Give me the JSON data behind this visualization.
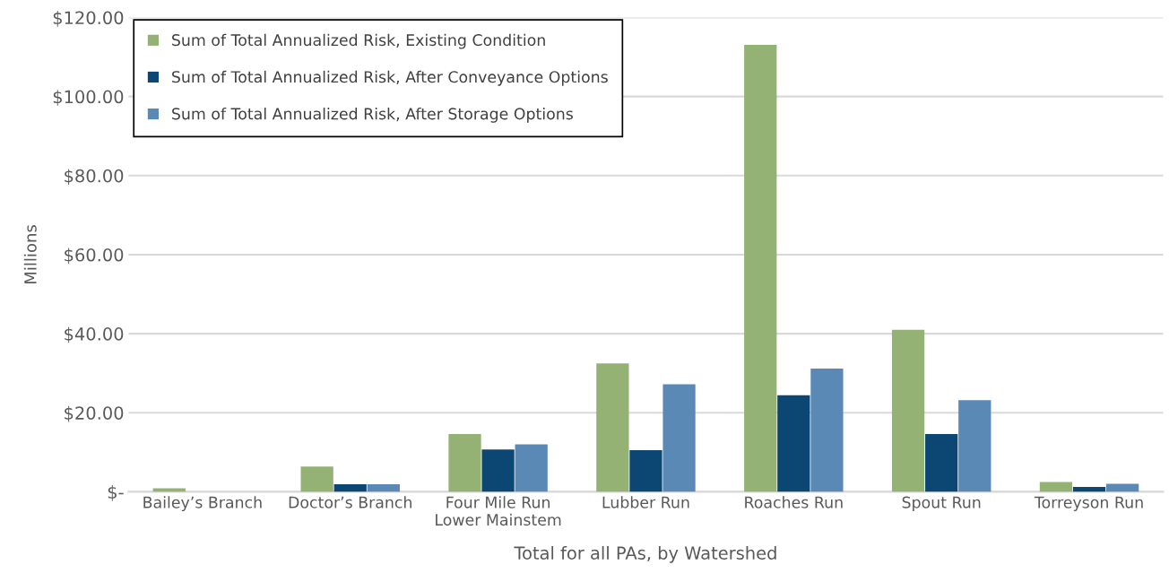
{
  "chart_data": {
    "type": "bar",
    "xlabel": "Total for all PAs, by Watershed",
    "ylabel": "Millions",
    "categories": [
      "Bailey’s Branch",
      "Doctor’s Branch",
      "Four Mile Run\nLower Mainstem",
      "Lubber Run",
      "Roaches Run",
      "Spout Run",
      "Torreyson Run"
    ],
    "series": [
      {
        "name": "Sum of Total Annualized Risk, Existing Condition",
        "color": "#94b274",
        "values": [
          0.9,
          6.4,
          14.6,
          32.5,
          113.1,
          41.0,
          2.5
        ]
      },
      {
        "name": "Sum of Total Annualized Risk, After Conveyance Options",
        "color": "#0b4772",
        "values": [
          0,
          1.9,
          10.7,
          10.5,
          24.4,
          14.6,
          1.2
        ]
      },
      {
        "name": "Sum of Total Annualized Risk, After Storage Options",
        "color": "#5b89b6",
        "values": [
          0,
          1.9,
          12.0,
          27.2,
          31.2,
          23.2,
          2.0
        ]
      }
    ],
    "ylim": [
      0,
      120
    ],
    "yticks": [
      {
        "value": 0,
        "label": "$-"
      },
      {
        "value": 20,
        "label": "$20.00"
      },
      {
        "value": 40,
        "label": "$40.00"
      },
      {
        "value": 60,
        "label": "$60.00"
      },
      {
        "value": 80,
        "label": "$80.00"
      },
      {
        "value": 100,
        "label": "$100.00"
      },
      {
        "value": 120,
        "label": "$120.00"
      }
    ],
    "grid": "y",
    "legend": "top left"
  }
}
